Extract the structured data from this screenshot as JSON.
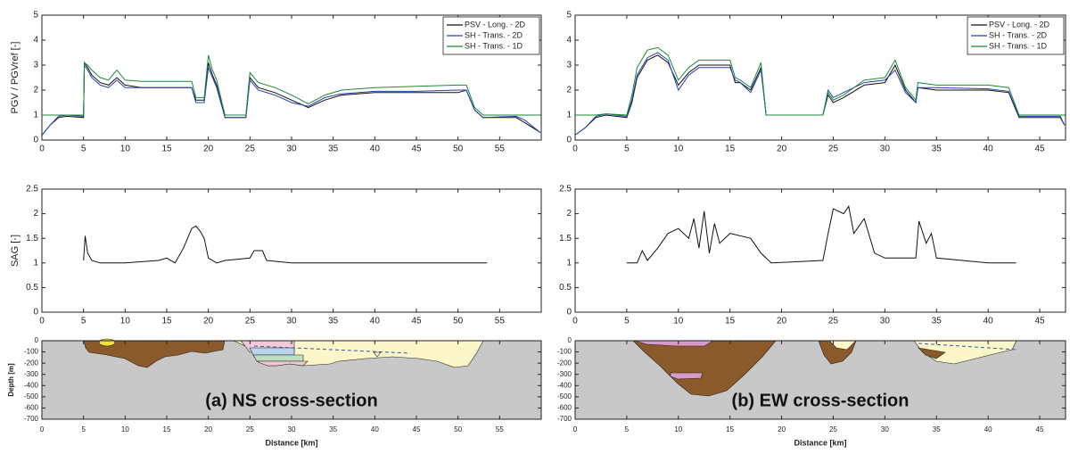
{
  "chart_data": [
    {
      "type": "line",
      "y_label": "PGV / PGVref [-]",
      "xlim": [
        0,
        60
      ],
      "ylim": [
        0,
        5
      ],
      "xticks": [
        0,
        5,
        10,
        15,
        20,
        25,
        30,
        35,
        40,
        45,
        50,
        55
      ],
      "yticks": [
        0,
        1,
        2,
        3,
        4,
        5
      ],
      "legend": "upper right",
      "x": [
        0,
        1,
        2,
        3,
        5,
        5.1,
        5.5,
        6,
        7,
        8,
        9,
        10,
        12,
        15,
        18,
        18.5,
        19.5,
        20,
        20.5,
        21,
        22,
        24.5,
        25,
        25.5,
        26,
        28,
        30,
        32,
        34,
        36,
        40,
        45,
        50,
        51,
        52,
        53,
        57,
        58,
        59.9
      ],
      "series": [
        {
          "name": "PSV - Long. - 2D",
          "color": "#111111",
          "values": [
            0.2,
            0.6,
            0.9,
            0.95,
            0.9,
            3.1,
            2.9,
            2.6,
            2.3,
            2.2,
            2.5,
            2.2,
            2.1,
            2.1,
            2.1,
            1.6,
            1.6,
            3.1,
            2.6,
            2.2,
            0.9,
            0.9,
            2.5,
            2.3,
            2.1,
            1.9,
            1.6,
            1.3,
            1.6,
            1.8,
            1.9,
            1.9,
            1.9,
            2.0,
            1.2,
            0.9,
            0.9,
            0.7,
            0.3
          ]
        },
        {
          "name": "SH - Trans. - 2D",
          "color": "#2b3fb0",
          "values": [
            0.2,
            0.6,
            0.95,
            1.0,
            0.95,
            3.0,
            2.8,
            2.5,
            2.2,
            2.1,
            2.4,
            2.1,
            2.1,
            2.1,
            2.1,
            1.5,
            1.5,
            2.9,
            2.5,
            2.1,
            0.9,
            0.9,
            2.4,
            2.2,
            2.0,
            1.8,
            1.5,
            1.35,
            1.7,
            1.85,
            1.95,
            1.95,
            2.0,
            2.0,
            1.2,
            0.9,
            0.95,
            0.8,
            0.3
          ]
        },
        {
          "name": "SH - Trans. - 1D",
          "color": "#1a8a3a",
          "values": [
            1,
            1,
            1,
            1,
            1,
            3.1,
            3.0,
            2.8,
            2.5,
            2.4,
            2.8,
            2.4,
            2.35,
            2.35,
            2.35,
            1.7,
            1.7,
            3.4,
            2.8,
            2.4,
            1,
            1,
            2.7,
            2.5,
            2.3,
            2.1,
            1.8,
            1.45,
            1.8,
            2.0,
            2.1,
            2.15,
            2.2,
            2.2,
            1.3,
            1,
            1,
            1,
            1
          ]
        }
      ]
    },
    {
      "type": "line",
      "y_label": "SAG [-]",
      "xlim": [
        0,
        60
      ],
      "ylim": [
        0,
        2.5
      ],
      "xticks": [
        0,
        5,
        10,
        15,
        20,
        25,
        30,
        35,
        40,
        45,
        50,
        55
      ],
      "yticks": [
        0,
        0.5,
        1,
        1.5,
        2,
        2.5
      ],
      "x": [
        5,
        5.2,
        5.5,
        6,
        7,
        10,
        14,
        15,
        16,
        17,
        18,
        18.5,
        19,
        19.5,
        20,
        21,
        22,
        25,
        25.5,
        26.5,
        27,
        30,
        40,
        50,
        53.5
      ],
      "series": [
        {
          "color": "#111111",
          "values": [
            1.05,
            1.55,
            1.2,
            1.05,
            1,
            1,
            1.05,
            1.1,
            1,
            1.3,
            1.7,
            1.75,
            1.65,
            1.5,
            1.1,
            1,
            1.05,
            1.1,
            1.25,
            1.25,
            1.05,
            1,
            1,
            1,
            1
          ]
        }
      ]
    },
    {
      "type": "section",
      "y_label": "Depth [m]",
      "x_label": "Distance [km]",
      "annotation": "(a) NS cross-section",
      "xlim": [
        0,
        60
      ],
      "ylim": [
        -700,
        0
      ],
      "xticks": [
        0,
        5,
        10,
        15,
        20,
        25,
        30,
        35,
        40,
        45,
        50,
        55
      ],
      "yticks": [
        0,
        -100,
        -200,
        -300,
        -400,
        -500,
        -600,
        -700
      ]
    },
    {
      "type": "line",
      "xlim": [
        0,
        47.5
      ],
      "ylim": [
        0,
        5
      ],
      "xticks": [
        0,
        5,
        10,
        15,
        20,
        25,
        30,
        35,
        40,
        45
      ],
      "yticks": [
        0,
        1,
        2,
        3,
        4,
        5
      ],
      "legend": "upper right",
      "x": [
        0,
        1,
        2,
        3,
        5,
        5.5,
        6,
        7,
        8,
        9,
        10,
        11,
        12,
        15,
        15.5,
        16,
        17,
        18,
        18.5,
        24,
        24.5,
        25,
        26,
        28,
        30,
        31,
        32,
        33,
        33.2,
        35,
        40,
        42,
        43,
        47,
        47.4
      ],
      "series": [
        {
          "name": "PSV - Long. - 2D",
          "color": "#111111",
          "values": [
            0.2,
            0.5,
            0.9,
            1.0,
            0.9,
            1.5,
            2.5,
            3.2,
            3.4,
            3.1,
            2.2,
            2.7,
            3.0,
            3.0,
            2.3,
            2.3,
            2.0,
            2.9,
            1.0,
            1.0,
            1.8,
            1.5,
            1.7,
            2.2,
            2.3,
            3.0,
            2.0,
            1.5,
            2.1,
            2.0,
            2.0,
            1.9,
            0.9,
            0.9,
            0.6
          ]
        },
        {
          "name": "SH - Trans. - 2D",
          "color": "#2b3fb0",
          "values": [
            0.2,
            0.5,
            0.95,
            1.05,
            0.95,
            1.6,
            2.6,
            3.3,
            3.5,
            3.2,
            2.0,
            2.6,
            2.9,
            2.9,
            2.4,
            2.3,
            1.9,
            2.8,
            1.0,
            1.0,
            2.0,
            1.7,
            1.9,
            2.3,
            2.4,
            2.8,
            1.9,
            1.5,
            2.1,
            2.1,
            2.05,
            1.95,
            0.95,
            0.95,
            0.6
          ]
        },
        {
          "name": "SH - Trans. - 1D",
          "color": "#1a8a3a",
          "values": [
            1,
            1,
            1,
            1.05,
            1,
            1.8,
            2.9,
            3.6,
            3.7,
            3.4,
            2.4,
            2.9,
            3.2,
            3.2,
            2.5,
            2.4,
            2.1,
            3.1,
            1,
            1,
            1.9,
            1.6,
            1.8,
            2.4,
            2.5,
            3.2,
            2.1,
            1.6,
            2.3,
            2.2,
            2.2,
            2.1,
            1,
            1,
            1
          ]
        }
      ]
    },
    {
      "type": "line",
      "xlim": [
        0,
        47.5
      ],
      "ylim": [
        0,
        2.5
      ],
      "xticks": [
        0,
        5,
        10,
        15,
        20,
        25,
        30,
        35,
        40,
        45
      ],
      "yticks": [
        0,
        0.5,
        1,
        1.5,
        2,
        2.5
      ],
      "x": [
        5,
        6,
        6.5,
        7,
        8,
        9,
        10,
        11,
        11.5,
        12,
        12.5,
        13,
        13.5,
        14,
        15,
        17,
        18,
        19,
        24,
        24.5,
        25,
        26,
        26.5,
        27,
        28,
        29,
        30,
        33,
        33.3,
        34,
        34.5,
        35,
        40,
        42.7
      ],
      "series": [
        {
          "color": "#111111",
          "values": [
            1,
            1,
            1.25,
            1.05,
            1.3,
            1.6,
            1.7,
            1.5,
            1.9,
            1.3,
            2.05,
            1.2,
            1.8,
            1.4,
            1.6,
            1.5,
            1.2,
            1,
            1.05,
            1.6,
            2.1,
            2,
            2.15,
            1.6,
            1.9,
            1.2,
            1.1,
            1.1,
            1.85,
            1.4,
            1.6,
            1.1,
            1,
            1
          ]
        }
      ]
    },
    {
      "type": "section",
      "x_label": "Distance [km]",
      "annotation": "(b) EW cross-section",
      "xlim": [
        0,
        47.5
      ],
      "ylim": [
        -700,
        0
      ],
      "xticks": [
        0,
        5,
        10,
        15,
        20,
        25,
        30,
        35,
        40,
        45
      ],
      "yticks": [
        0,
        -100,
        -200,
        -300,
        -400,
        -500,
        -600,
        -700
      ]
    }
  ]
}
